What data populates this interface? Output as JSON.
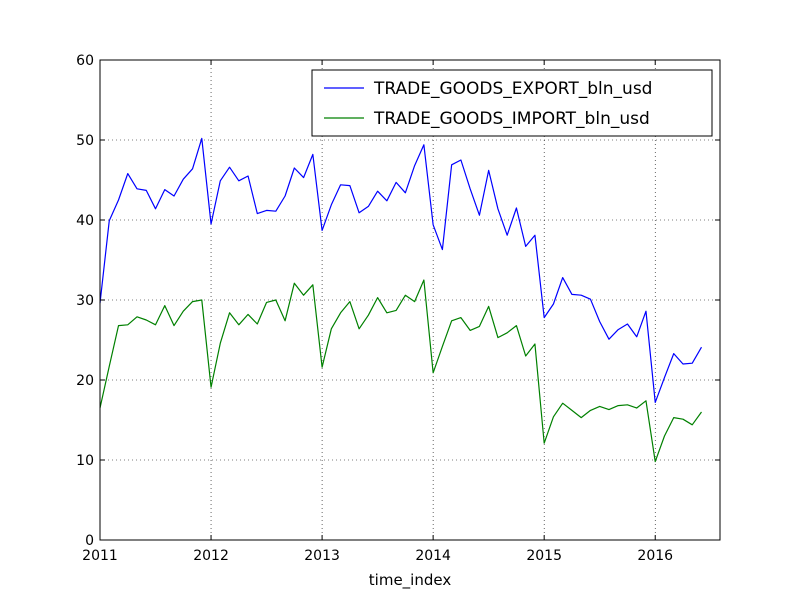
{
  "chart_data": {
    "type": "line",
    "title": "",
    "xlabel": "time_index",
    "ylabel": "",
    "xlim": [
      2011.0,
      2016.5833
    ],
    "ylim": [
      0,
      60
    ],
    "x_ticks": [
      2011,
      2012,
      2013,
      2014,
      2015,
      2016
    ],
    "y_ticks": [
      0,
      10,
      20,
      30,
      40,
      50,
      60
    ],
    "grid": true,
    "legend_position": "top-right",
    "series": [
      {
        "name": "TRADE_GOODS_EXPORT_bln_usd",
        "color": "#0000ff",
        "x": [
          "2011-01",
          "2011-02",
          "2011-03",
          "2011-04",
          "2011-05",
          "2011-06",
          "2011-07",
          "2011-08",
          "2011-09",
          "2011-10",
          "2011-11",
          "2011-12",
          "2012-01",
          "2012-02",
          "2012-03",
          "2012-04",
          "2012-05",
          "2012-06",
          "2012-07",
          "2012-08",
          "2012-09",
          "2012-10",
          "2012-11",
          "2012-12",
          "2013-01",
          "2013-02",
          "2013-03",
          "2013-04",
          "2013-05",
          "2013-06",
          "2013-07",
          "2013-08",
          "2013-09",
          "2013-10",
          "2013-11",
          "2013-12",
          "2014-01",
          "2014-02",
          "2014-03",
          "2014-04",
          "2014-05",
          "2014-06",
          "2014-07",
          "2014-08",
          "2014-09",
          "2014-10",
          "2014-11",
          "2014-12",
          "2015-01",
          "2015-02",
          "2015-03",
          "2015-04",
          "2015-05",
          "2015-06",
          "2015-07",
          "2015-08",
          "2015-09",
          "2015-10",
          "2015-11",
          "2015-12",
          "2016-01",
          "2016-02",
          "2016-03",
          "2016-04",
          "2016-05",
          "2016-06"
        ],
        "values": [
          29.6,
          39.9,
          42.5,
          45.8,
          43.9,
          43.7,
          41.4,
          43.8,
          43.0,
          45.1,
          46.4,
          50.2,
          39.5,
          44.9,
          46.6,
          44.9,
          45.5,
          40.8,
          41.2,
          41.1,
          43.0,
          46.5,
          45.3,
          48.2,
          38.7,
          41.9,
          44.4,
          44.3,
          40.9,
          41.7,
          43.6,
          42.4,
          44.7,
          43.4,
          46.8,
          49.4,
          39.4,
          36.3,
          46.9,
          47.5,
          43.9,
          40.6,
          46.2,
          41.4,
          38.1,
          41.5,
          36.7,
          38.1,
          27.8,
          29.5,
          32.8,
          30.7,
          30.6,
          30.1,
          27.3,
          25.1,
          26.3,
          27.0,
          25.4,
          28.6,
          17.2,
          20.3,
          23.3,
          22.0,
          22.1,
          24.1
        ]
      },
      {
        "name": "TRADE_GOODS_IMPORT_bln_usd",
        "color": "#008000",
        "x": [
          "2011-01",
          "2011-02",
          "2011-03",
          "2011-04",
          "2011-05",
          "2011-06",
          "2011-07",
          "2011-08",
          "2011-09",
          "2011-10",
          "2011-11",
          "2011-12",
          "2012-01",
          "2012-02",
          "2012-03",
          "2012-04",
          "2012-05",
          "2012-06",
          "2012-07",
          "2012-08",
          "2012-09",
          "2012-10",
          "2012-11",
          "2012-12",
          "2013-01",
          "2013-02",
          "2013-03",
          "2013-04",
          "2013-05",
          "2013-06",
          "2013-07",
          "2013-08",
          "2013-09",
          "2013-10",
          "2013-11",
          "2013-12",
          "2014-01",
          "2014-02",
          "2014-03",
          "2014-04",
          "2014-05",
          "2014-06",
          "2014-07",
          "2014-08",
          "2014-09",
          "2014-10",
          "2014-11",
          "2014-12",
          "2015-01",
          "2015-02",
          "2015-03",
          "2015-04",
          "2015-05",
          "2015-06",
          "2015-07",
          "2015-08",
          "2015-09",
          "2015-10",
          "2015-11",
          "2015-12",
          "2016-01",
          "2016-02",
          "2016-03",
          "2016-04",
          "2016-05",
          "2016-06"
        ],
        "values": [
          16.5,
          21.7,
          26.8,
          26.9,
          27.9,
          27.5,
          26.9,
          29.3,
          26.8,
          28.6,
          29.8,
          30.0,
          19.1,
          24.6,
          28.4,
          26.9,
          28.2,
          27.0,
          29.7,
          30.0,
          27.4,
          32.1,
          30.6,
          31.9,
          21.6,
          26.4,
          28.4,
          29.8,
          26.4,
          28.1,
          30.3,
          28.4,
          28.7,
          30.6,
          29.8,
          32.5,
          20.9,
          24.2,
          27.4,
          27.8,
          26.2,
          26.7,
          29.2,
          25.3,
          25.9,
          26.8,
          23.0,
          24.5,
          12.1,
          15.4,
          17.1,
          16.2,
          15.3,
          16.2,
          16.7,
          16.3,
          16.8,
          16.9,
          16.5,
          17.4,
          9.8,
          13.0,
          15.3,
          15.1,
          14.4,
          16.0
        ]
      }
    ]
  }
}
